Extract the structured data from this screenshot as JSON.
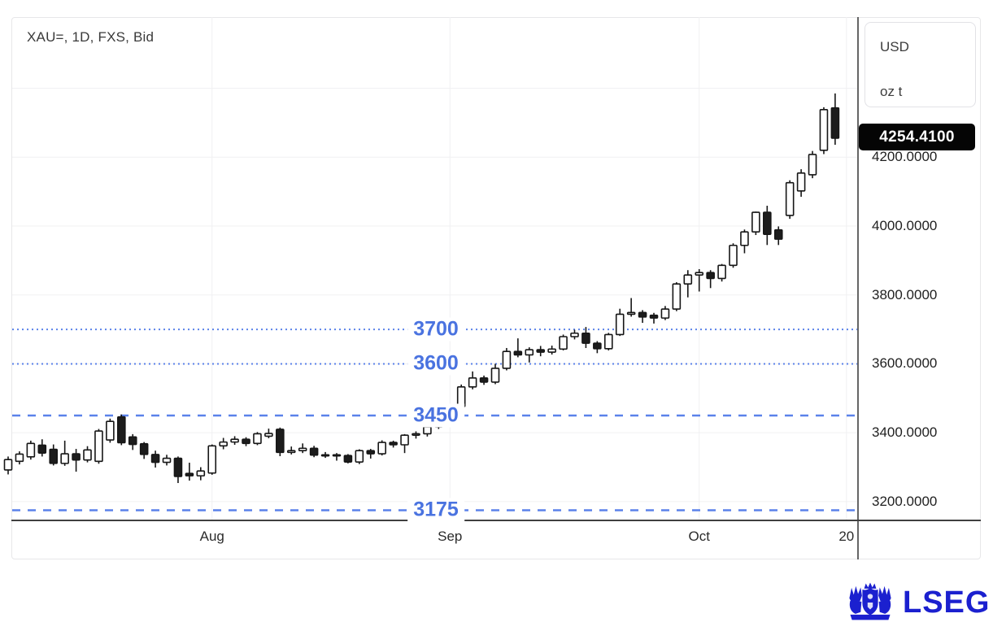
{
  "title": "XAU=, 1D, FXS, Bid",
  "unit_box": {
    "currency": "USD",
    "unit": "oz t"
  },
  "price_badge": "4254.4100",
  "logo": {
    "text": "LSEG",
    "color": "#1b20cf"
  },
  "colors": {
    "accent_line": "#5b82ea",
    "accent_text": "#4a73e0",
    "candle_up_fill": "#ffffff",
    "candle_down_fill": "#1c1c1c",
    "candle_stroke": "#161616",
    "grid": "#f0f0f2",
    "axis_line": "#3f3f3f",
    "badge_bg": "#050505"
  },
  "chart_data": {
    "type": "candlestick",
    "symbol": "XAU=",
    "interval": "1D",
    "source": "FXS",
    "field": "Bid",
    "unit": "USD / oz t",
    "last_price": 4254.41,
    "grid": true,
    "ylim": [
      3145,
      4610
    ],
    "price_axis": {
      "labels": [
        {
          "text": "4200.0000",
          "value": 4200
        },
        {
          "text": "4000.0000",
          "value": 4000
        },
        {
          "text": "3800.0000",
          "value": 3800
        },
        {
          "text": "3600.0000",
          "value": 3600
        },
        {
          "text": "3400.0000",
          "value": 3400
        },
        {
          "text": "3200.0000",
          "value": 3200
        }
      ],
      "grid_values": [
        3200,
        3400,
        3600,
        3800,
        4000,
        4200,
        4400
      ]
    },
    "time_axis": {
      "ticks": [
        {
          "label": "Aug",
          "index": 18
        },
        {
          "label": "Sep",
          "index": 39
        },
        {
          "label": "Oct",
          "index": 61
        },
        {
          "label": "20",
          "index": 74
        }
      ]
    },
    "levels": [
      {
        "label": "3700",
        "value": 3700,
        "style": "dotted"
      },
      {
        "label": "3600",
        "value": 3600,
        "style": "dotted"
      },
      {
        "label": "3450",
        "value": 3450,
        "style": "dashed"
      },
      {
        "label": "3175",
        "value": 3175,
        "style": "dashed"
      }
    ],
    "candles": [
      [
        "Jul 8",
        3292,
        3331,
        3279,
        3322
      ],
      [
        "Jul 9",
        3317,
        3346,
        3308,
        3338
      ],
      [
        "Jul 10",
        3330,
        3377,
        3322,
        3369
      ],
      [
        "Jul 11",
        3364,
        3381,
        3331,
        3341
      ],
      [
        "Jul 14",
        3352,
        3366,
        3305,
        3311
      ],
      [
        "Jul 15",
        3311,
        3377,
        3304,
        3339
      ],
      [
        "Jul 16",
        3339,
        3353,
        3287,
        3321
      ],
      [
        "Jul 17",
        3321,
        3361,
        3314,
        3350
      ],
      [
        "Jul 18",
        3317,
        3411,
        3310,
        3405
      ],
      [
        "Jul 21",
        3379,
        3441,
        3371,
        3433
      ],
      [
        "Jul 22",
        3446,
        3453,
        3364,
        3371
      ],
      [
        "Jul 23",
        3388,
        3396,
        3350,
        3366
      ],
      [
        "Jul 24",
        3368,
        3373,
        3324,
        3337
      ],
      [
        "Jul 25",
        3337,
        3348,
        3299,
        3314
      ],
      [
        "Jul 28",
        3314,
        3336,
        3305,
        3326
      ],
      [
        "Jul 29",
        3326,
        3331,
        3254,
        3273
      ],
      [
        "Jul 30",
        3282,
        3313,
        3261,
        3275
      ],
      [
        "Jul 31",
        3275,
        3300,
        3262,
        3289
      ],
      [
        "Aug 1",
        3283,
        3366,
        3278,
        3362
      ],
      [
        "Aug 4",
        3362,
        3385,
        3352,
        3373
      ],
      [
        "Aug 5",
        3373,
        3390,
        3365,
        3381
      ],
      [
        "Aug 6",
        3381,
        3387,
        3361,
        3369
      ],
      [
        "Aug 7",
        3369,
        3402,
        3364,
        3397
      ],
      [
        "Aug 8",
        3390,
        3412,
        3384,
        3398
      ],
      [
        "Aug 11",
        3410,
        3415,
        3332,
        3343
      ],
      [
        "Aug 12",
        3343,
        3360,
        3337,
        3348
      ],
      [
        "Aug 13",
        3348,
        3369,
        3341,
        3355
      ],
      [
        "Aug 14",
        3355,
        3362,
        3329,
        3335
      ],
      [
        "Aug 15",
        3335,
        3344,
        3327,
        3336
      ],
      [
        "Aug 18",
        3336,
        3341,
        3319,
        3334
      ],
      [
        "Aug 19",
        3334,
        3338,
        3311,
        3315
      ],
      [
        "Aug 20",
        3315,
        3352,
        3309,
        3348
      ],
      [
        "Aug 21",
        3348,
        3353,
        3325,
        3339
      ],
      [
        "Aug 22",
        3339,
        3378,
        3334,
        3372
      ],
      [
        "Aug 25",
        3372,
        3377,
        3357,
        3365
      ],
      [
        "Aug 26",
        3365,
        3396,
        3341,
        3393
      ],
      [
        "Aug 27",
        3393,
        3404,
        3383,
        3397
      ],
      [
        "Aug 28",
        3397,
        3423,
        3389,
        3417
      ],
      [
        "Aug 29",
        3417,
        3452,
        3411,
        3448
      ],
      [
        "Sep 1",
        3448,
        3480,
        3441,
        3476
      ],
      [
        "Sep 2",
        3476,
        3540,
        3469,
        3533
      ],
      [
        "Sep 3",
        3533,
        3578,
        3526,
        3559
      ],
      [
        "Sep 4",
        3559,
        3566,
        3539,
        3547
      ],
      [
        "Sep 5",
        3547,
        3600,
        3541,
        3587
      ],
      [
        "Sep 8",
        3587,
        3646,
        3581,
        3636
      ],
      [
        "Sep 9",
        3636,
        3674,
        3619,
        3626
      ],
      [
        "Sep 10",
        3626,
        3648,
        3604,
        3641
      ],
      [
        "Sep 11",
        3641,
        3652,
        3622,
        3634
      ],
      [
        "Sep 12",
        3634,
        3653,
        3627,
        3643
      ],
      [
        "Sep 15",
        3643,
        3685,
        3639,
        3679
      ],
      [
        "Sep 16",
        3679,
        3699,
        3671,
        3689
      ],
      [
        "Sep 17",
        3689,
        3707,
        3646,
        3660
      ],
      [
        "Sep 18",
        3660,
        3666,
        3631,
        3644
      ],
      [
        "Sep 19",
        3644,
        3690,
        3639,
        3685
      ],
      [
        "Sep 22",
        3685,
        3760,
        3681,
        3744
      ],
      [
        "Sep 23",
        3744,
        3791,
        3737,
        3749
      ],
      [
        "Sep 24",
        3749,
        3756,
        3719,
        3736
      ],
      [
        "Sep 25",
        3741,
        3748,
        3717,
        3733
      ],
      [
        "Sep 26",
        3733,
        3768,
        3727,
        3759
      ],
      [
        "Sep 29",
        3759,
        3837,
        3753,
        3832
      ],
      [
        "Sep 30",
        3832,
        3872,
        3793,
        3858
      ],
      [
        "Oct 1",
        3858,
        3875,
        3810,
        3865
      ],
      [
        "Oct 2",
        3865,
        3872,
        3820,
        3848
      ],
      [
        "Oct 3",
        3848,
        3890,
        3839,
        3886
      ],
      [
        "Oct 6",
        3886,
        3950,
        3879,
        3944
      ],
      [
        "Oct 7",
        3944,
        3990,
        3921,
        3983
      ],
      [
        "Oct 8",
        3983,
        4042,
        3974,
        4040
      ],
      [
        "Oct 9",
        4040,
        4059,
        3945,
        3976
      ],
      [
        "Oct 10",
        3989,
        3999,
        3945,
        3962
      ],
      [
        "Oct 13",
        4031,
        4133,
        4021,
        4126
      ],
      [
        "Oct 14",
        4102,
        4165,
        4085,
        4154
      ],
      [
        "Oct 15",
        4149,
        4218,
        4139,
        4208
      ],
      [
        "Oct 16",
        4220,
        4345,
        4209,
        4338
      ],
      [
        "Oct 17",
        4343,
        4385,
        4236,
        4255
      ]
    ]
  }
}
